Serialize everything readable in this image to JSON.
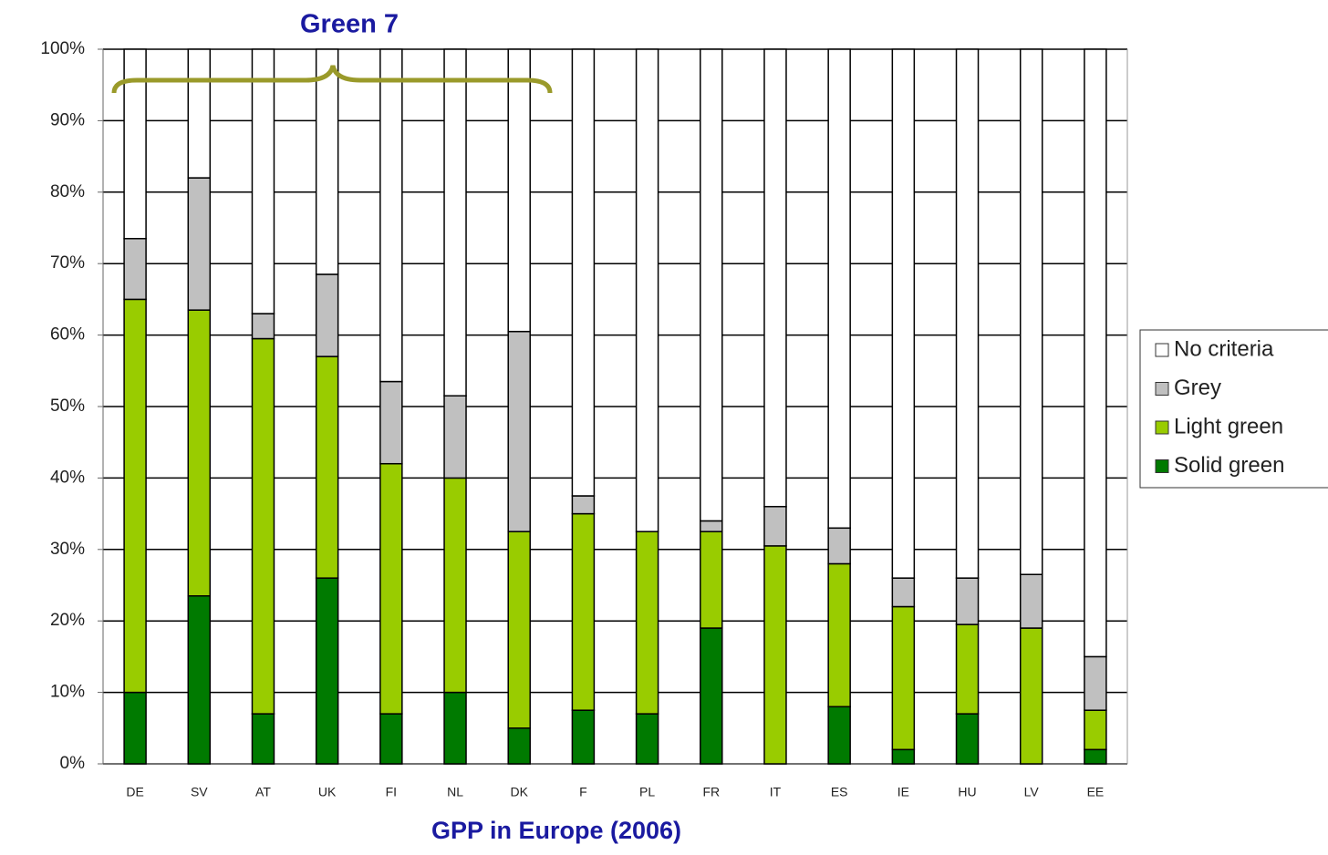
{
  "chart_data": {
    "type": "stacked_bar",
    "annotation": "Green 7",
    "xlabel": "GPP in Europe (2006)",
    "categories": [
      "DE",
      "SV",
      "AT",
      "UK",
      "FI",
      "NL",
      "DK",
      "F",
      "PL",
      "FR",
      "IT",
      "ES",
      "IE",
      "HU",
      "LV",
      "EE"
    ],
    "series": [
      {
        "name": "Solid green",
        "color": "#007a00",
        "values": [
          10,
          23.5,
          7,
          26,
          7,
          10,
          5,
          7.5,
          7,
          19,
          0,
          8,
          2,
          7,
          0,
          2
        ]
      },
      {
        "name": "Light green",
        "color": "#99cc00",
        "values": [
          55,
          40,
          52.5,
          31,
          35,
          30,
          27.5,
          27.5,
          25.5,
          13.5,
          30.5,
          20,
          20,
          12.5,
          19,
          5.5
        ]
      },
      {
        "name": "Grey",
        "color": "#c0c0c0",
        "values": [
          8.5,
          18.5,
          3.5,
          11.5,
          11.5,
          11.5,
          28,
          2.5,
          0,
          1.5,
          5.5,
          5,
          4,
          6.5,
          7.5,
          7.5
        ]
      },
      {
        "name": "No criteria",
        "color": "#ffffff",
        "values": [
          26.5,
          18,
          37,
          31.5,
          46.5,
          48.5,
          39.5,
          62.5,
          67.5,
          66,
          64,
          67,
          74,
          74,
          73.5,
          85
        ]
      }
    ],
    "ylim": [
      0,
      100
    ],
    "yticks": [
      {
        "value": 0,
        "label": "0%"
      },
      {
        "value": 10,
        "label": "10%"
      },
      {
        "value": 20,
        "label": "20%"
      },
      {
        "value": 30,
        "label": "30%"
      },
      {
        "value": 40,
        "label": "40%"
      },
      {
        "value": 50,
        "label": "50%"
      },
      {
        "value": 60,
        "label": "60%"
      },
      {
        "value": 70,
        "label": "70%"
      },
      {
        "value": 80,
        "label": "80%"
      },
      {
        "value": 90,
        "label": "90%"
      },
      {
        "value": 100,
        "label": "100%"
      }
    ],
    "grid": true
  }
}
